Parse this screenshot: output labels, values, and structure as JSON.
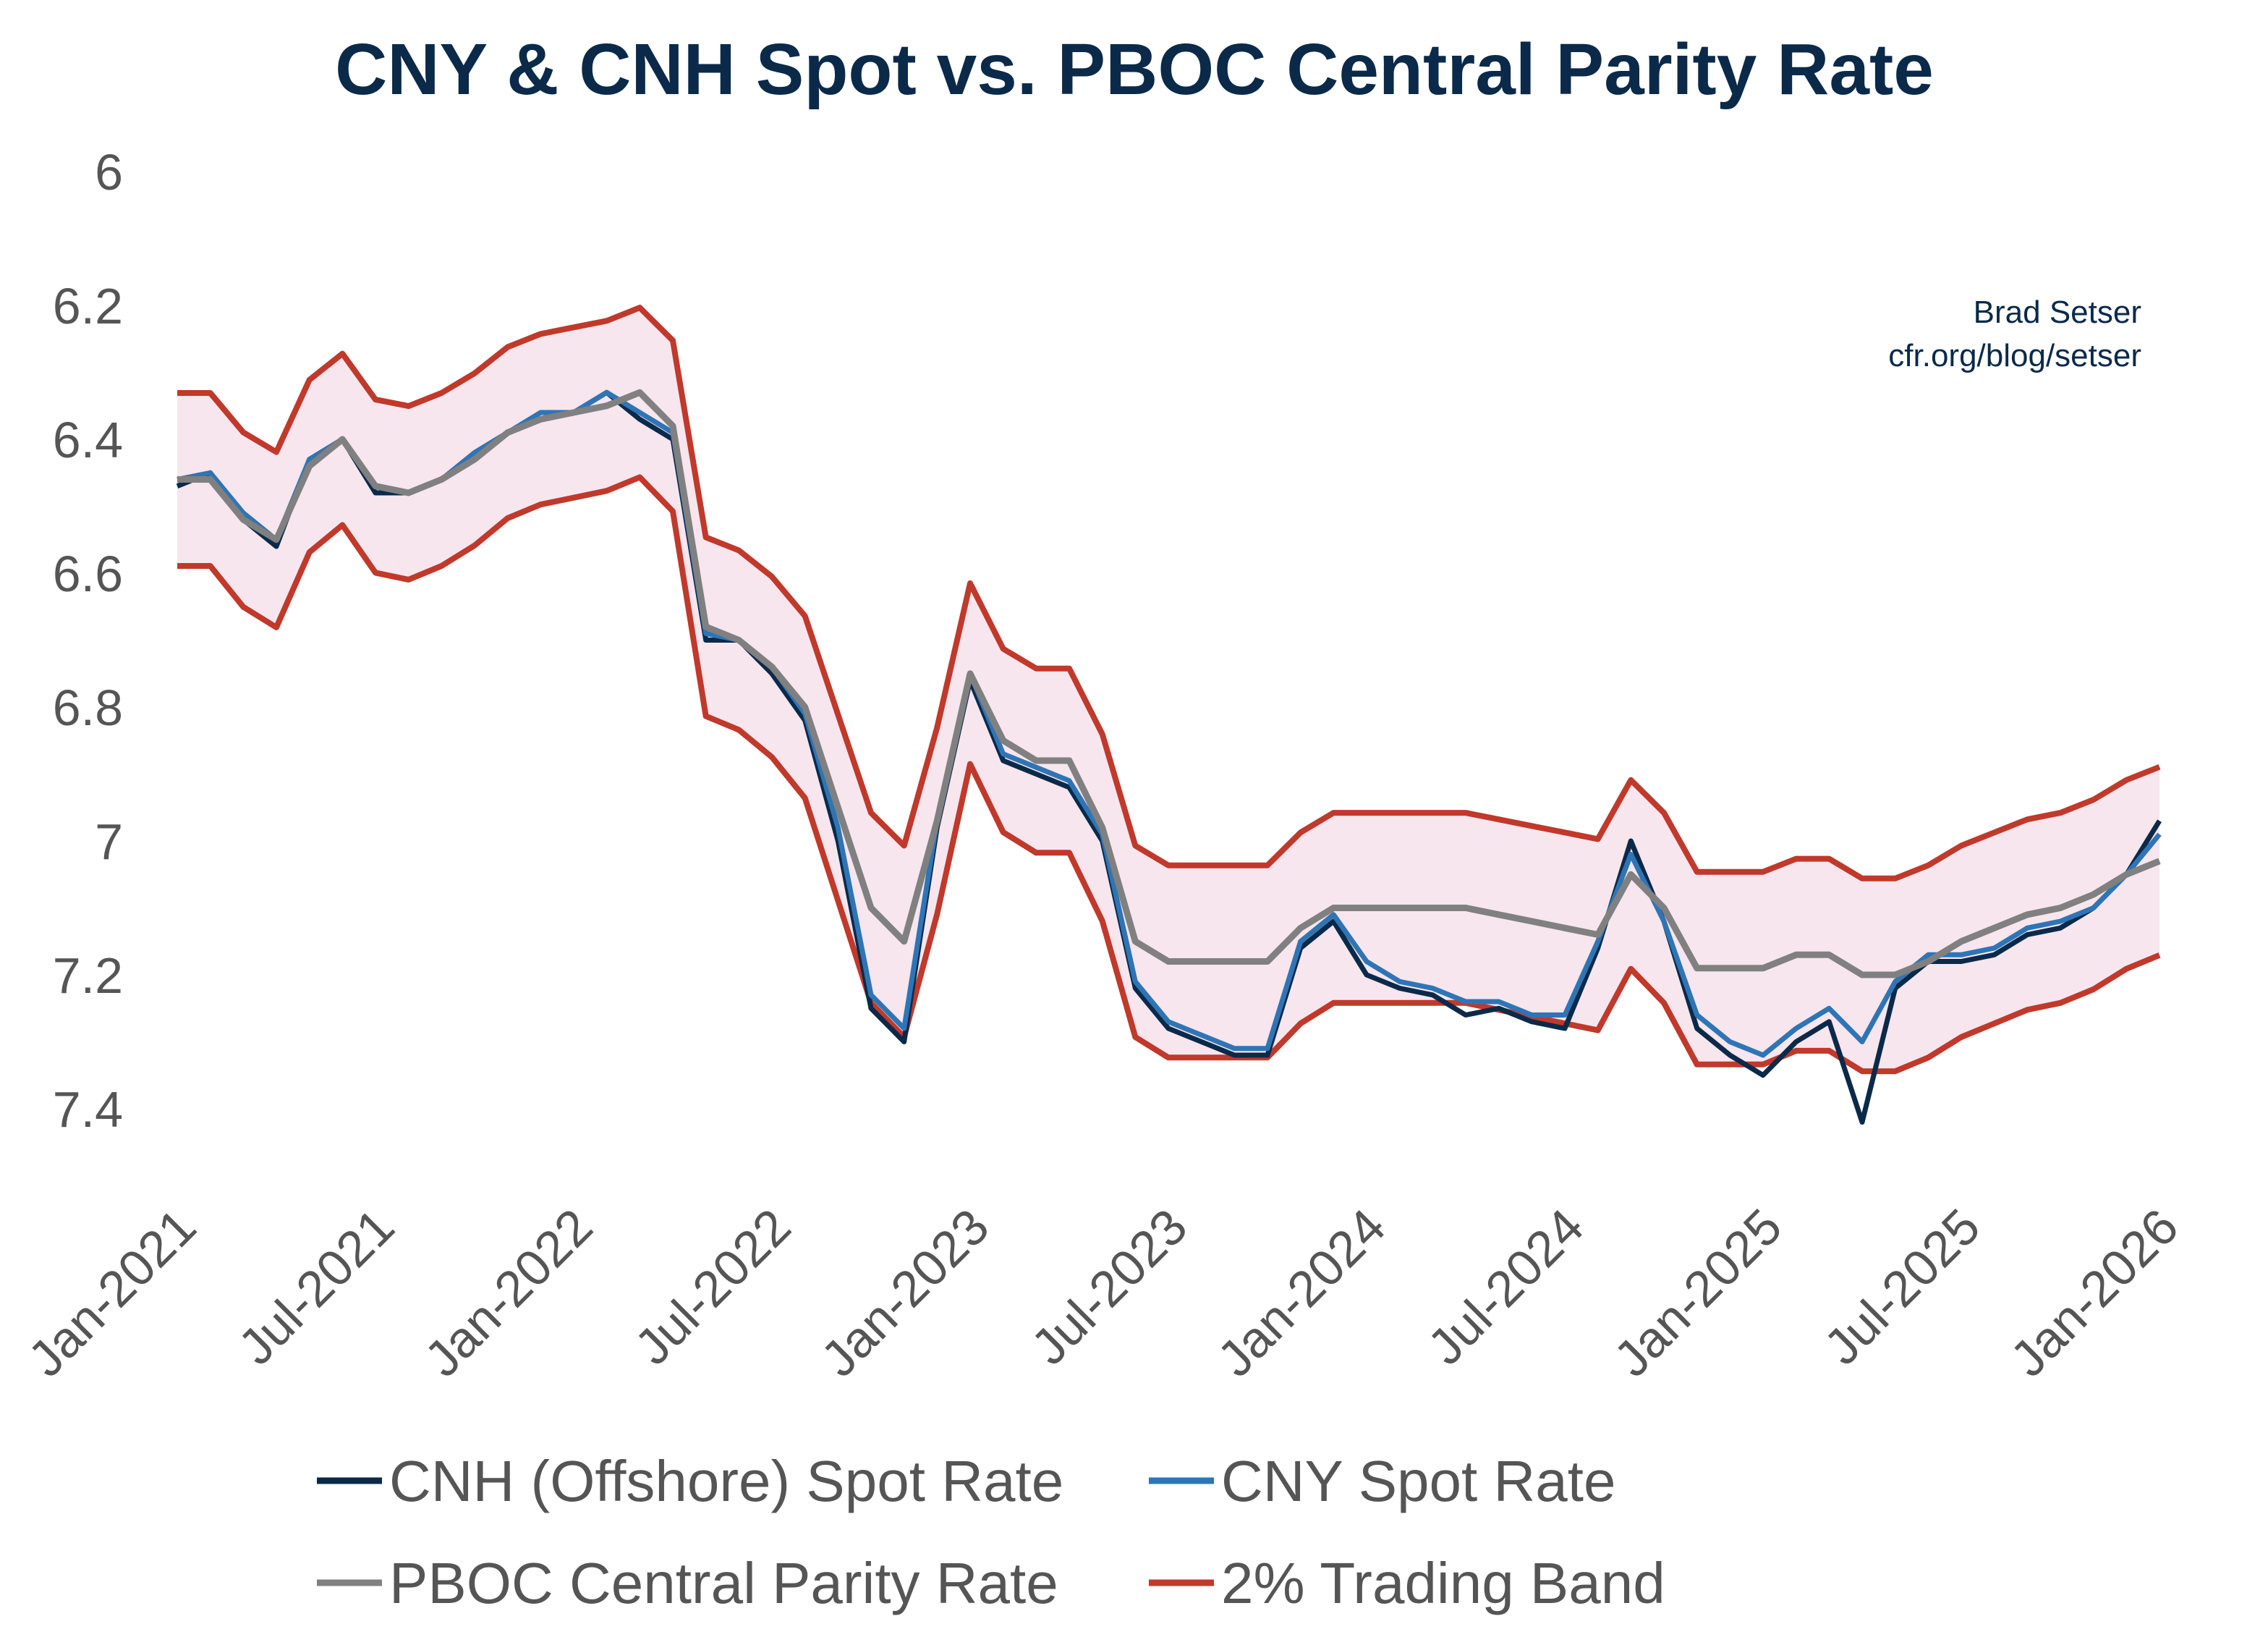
{
  "chart_data": {
    "type": "line",
    "title": "CNY & CNH Spot vs. PBOC Central Parity Rate",
    "attribution": [
      "Brad Setser",
      "cfr.org/blog/setser"
    ],
    "y_axis": {
      "min": 6,
      "max": 7.4,
      "inverted": true,
      "ticks": [
        "6",
        "6.2",
        "6.4",
        "6.6",
        "6.8",
        "7",
        "7.2",
        "7.4"
      ]
    },
    "x_axis": {
      "min": "2021-01",
      "max": "2026-01",
      "ticks": [
        "Jan-2021",
        "Jul-2021",
        "Jan-2022",
        "Jul-2022",
        "Jan-2023",
        "Jul-2023",
        "Jan-2024",
        "Jul-2024",
        "Jan-2025",
        "Jul-2025",
        "Jan-2026"
      ]
    },
    "grid": false,
    "legend_placement": "bottom",
    "x": [
      "2021-01",
      "2021-02",
      "2021-03",
      "2021-04",
      "2021-05",
      "2021-06",
      "2021-07",
      "2021-08",
      "2021-09",
      "2021-10",
      "2021-11",
      "2021-12",
      "2022-01",
      "2022-02",
      "2022-03",
      "2022-04",
      "2022-05",
      "2022-06",
      "2022-07",
      "2022-08",
      "2022-09",
      "2022-10",
      "2022-11",
      "2022-12",
      "2023-01",
      "2023-02",
      "2023-03",
      "2023-04",
      "2023-05",
      "2023-06",
      "2023-07",
      "2023-08",
      "2023-09",
      "2023-10",
      "2023-11",
      "2023-12",
      "2024-01",
      "2024-02",
      "2024-03",
      "2024-04",
      "2024-05",
      "2024-06",
      "2024-07",
      "2024-08",
      "2024-09",
      "2024-10",
      "2024-11",
      "2024-12",
      "2025-01",
      "2025-02",
      "2025-03",
      "2025-04",
      "2025-05",
      "2025-06",
      "2025-07",
      "2025-08",
      "2025-09",
      "2025-10",
      "2025-11",
      "2025-12",
      "2026-01"
    ],
    "series": [
      {
        "name": "CNH (Offshore) Spot Rate",
        "color": "#0b2a4a",
        "values": [
          6.47,
          6.45,
          6.52,
          6.56,
          6.43,
          6.4,
          6.48,
          6.48,
          6.46,
          6.42,
          6.39,
          6.37,
          6.36,
          6.33,
          6.37,
          6.4,
          6.7,
          6.7,
          6.75,
          6.82,
          7.0,
          7.25,
          7.3,
          6.98,
          6.76,
          6.88,
          6.9,
          6.92,
          7.0,
          7.22,
          7.28,
          7.3,
          7.32,
          7.32,
          7.16,
          7.12,
          7.2,
          7.22,
          7.23,
          7.26,
          7.25,
          7.27,
          7.28,
          7.16,
          7.0,
          7.12,
          7.28,
          7.32,
          7.35,
          7.3,
          7.27,
          7.42,
          7.22,
          7.18,
          7.18,
          7.17,
          7.14,
          7.13,
          7.1,
          7.05,
          6.97
        ]
      },
      {
        "name": "CNY Spot Rate",
        "color": "#2e75b6",
        "values": [
          6.46,
          6.45,
          6.51,
          6.55,
          6.43,
          6.4,
          6.47,
          6.48,
          6.46,
          6.42,
          6.39,
          6.36,
          6.36,
          6.33,
          6.36,
          6.39,
          6.69,
          6.7,
          6.74,
          6.81,
          6.98,
          7.23,
          7.28,
          6.97,
          6.75,
          6.87,
          6.89,
          6.91,
          6.99,
          7.21,
          7.27,
          7.29,
          7.31,
          7.31,
          7.15,
          7.11,
          7.18,
          7.21,
          7.22,
          7.24,
          7.24,
          7.26,
          7.26,
          7.15,
          7.02,
          7.12,
          7.26,
          7.3,
          7.32,
          7.28,
          7.25,
          7.3,
          7.21,
          7.17,
          7.17,
          7.16,
          7.13,
          7.12,
          7.1,
          7.05,
          6.99
        ]
      },
      {
        "name": "PBOC Central Parity Rate",
        "color": "#808080",
        "values": [
          6.46,
          6.46,
          6.52,
          6.55,
          6.44,
          6.4,
          6.47,
          6.48,
          6.46,
          6.43,
          6.39,
          6.37,
          6.36,
          6.35,
          6.33,
          6.38,
          6.68,
          6.7,
          6.74,
          6.8,
          6.95,
          7.1,
          7.15,
          6.97,
          6.75,
          6.85,
          6.88,
          6.88,
          6.98,
          7.15,
          7.18,
          7.18,
          7.18,
          7.18,
          7.13,
          7.1,
          7.1,
          7.1,
          7.1,
          7.1,
          7.11,
          7.12,
          7.13,
          7.14,
          7.05,
          7.1,
          7.19,
          7.19,
          7.19,
          7.17,
          7.17,
          7.2,
          7.2,
          7.18,
          7.15,
          7.13,
          7.11,
          7.1,
          7.08,
          7.05,
          7.03
        ]
      }
    ],
    "band": {
      "name": "2% Trading Band",
      "color": "#c0392b",
      "fill": "#f7e6ee",
      "percent": 2,
      "around": "PBOC Central Parity Rate"
    }
  }
}
